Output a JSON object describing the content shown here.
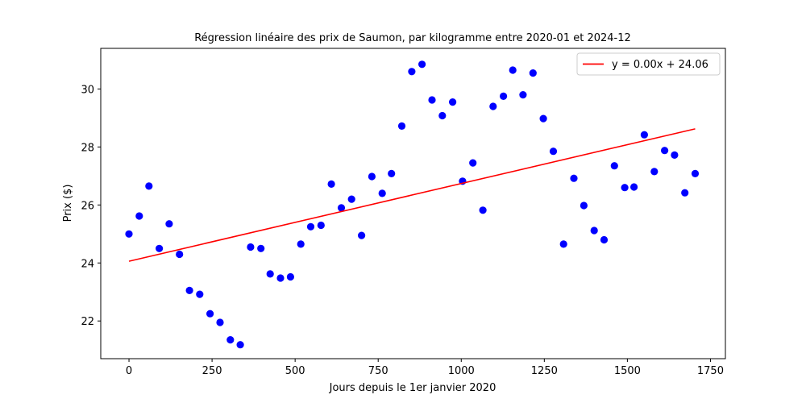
{
  "chart_data": {
    "type": "scatter",
    "title": "Régression linéaire des prix de Saumon, par kilogramme entre 2020-01 et 2024-12",
    "xlabel": "Jours depuis le 1er janvier 2020",
    "ylabel": "Prix ($)",
    "xlim": [
      -85,
      1795
    ],
    "ylim": [
      20.7,
      31.4
    ],
    "xticks": [
      0,
      250,
      500,
      750,
      1000,
      1250,
      1500,
      1750
    ],
    "yticks": [
      22,
      24,
      26,
      28,
      30
    ],
    "grid": false,
    "legend_position": "top-right",
    "point_color": "#0000ff",
    "line_color": "#ff0000",
    "points": {
      "x": [
        0,
        31,
        60,
        91,
        121,
        152,
        182,
        213,
        244,
        274,
        305,
        335,
        366,
        397,
        425,
        456,
        486,
        517,
        547,
        578,
        609,
        639,
        670,
        700,
        731,
        762,
        790,
        821,
        851,
        882,
        912,
        943,
        974,
        1004,
        1035,
        1065,
        1096,
        1127,
        1155,
        1186,
        1216,
        1247,
        1277,
        1308,
        1339,
        1369,
        1400,
        1430,
        1461,
        1492,
        1520,
        1551,
        1581,
        1612,
        1642,
        1673,
        1704
      ],
      "y": [
        25.0,
        25.62,
        26.65,
        24.5,
        25.35,
        24.3,
        23.05,
        22.92,
        22.25,
        21.95,
        21.35,
        21.18,
        24.55,
        24.5,
        23.62,
        23.48,
        23.52,
        24.65,
        25.25,
        25.3,
        26.72,
        25.9,
        26.2,
        24.95,
        26.98,
        26.4,
        27.08,
        28.72,
        30.6,
        30.85,
        29.62,
        29.08,
        29.55,
        26.82,
        27.45,
        25.82,
        29.4,
        29.75,
        30.65,
        29.8,
        30.55,
        28.98,
        27.85,
        24.65,
        26.92,
        25.98,
        25.12,
        24.8,
        27.35,
        26.6,
        26.62,
        28.42,
        27.15,
        27.88,
        27.72,
        26.42,
        27.08
      ]
    },
    "regression": {
      "name": "y = 0.00x + 24.06",
      "slope": 0.002679,
      "intercept": 24.06,
      "x_range": [
        0,
        1704
      ]
    }
  }
}
